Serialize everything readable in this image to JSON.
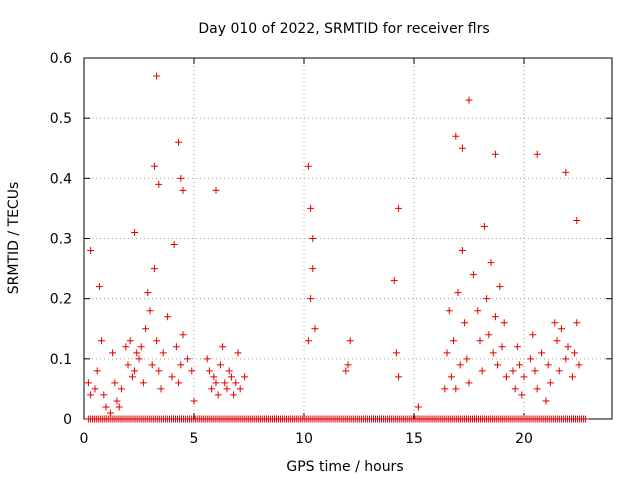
{
  "chart_data": {
    "type": "scatter",
    "title": "Day 010 of 2022, SRMTID for receiver flrs",
    "xlabel": "GPS time / hours",
    "ylabel": "SRMTID / TECUs",
    "xlim": [
      0,
      24
    ],
    "ylim": [
      0,
      0.6
    ],
    "x_ticks": [
      0,
      5,
      10,
      15,
      20
    ],
    "x_tick_labels": [
      "0",
      "5",
      "10",
      "15",
      "20"
    ],
    "y_ticks": [
      0,
      0.1,
      0.2,
      0.3,
      0.4,
      0.5,
      0.6
    ],
    "y_tick_labels": [
      "0",
      "0.1",
      "0.2",
      "0.3",
      "0.4",
      "0.5",
      "0.6"
    ],
    "grid": true,
    "marker": "+",
    "color": "#e00000",
    "series": [
      {
        "name": "SRMTID",
        "x": [
          0.2,
          0.3,
          0.5,
          0.6,
          0.7,
          0.8,
          0.9,
          1.0,
          1.2,
          1.3,
          1.4,
          1.5,
          1.6,
          1.7,
          1.9,
          2.0,
          2.1,
          2.2,
          2.3,
          2.4,
          2.5,
          2.6,
          2.7,
          2.8,
          2.9,
          3.0,
          3.1,
          3.2,
          3.3,
          3.4,
          3.5,
          3.6,
          3.8,
          4.0,
          4.2,
          4.3,
          4.4,
          4.5,
          4.7,
          4.9,
          5.0,
          5.6,
          5.7,
          5.8,
          5.9,
          6.0,
          6.1,
          6.2,
          6.3,
          6.4,
          6.5,
          6.6,
          6.7,
          6.8,
          6.9,
          7.0,
          7.1,
          7.3,
          10.2,
          10.3,
          10.4,
          10.5,
          11.9,
          12.0,
          12.1,
          14.1,
          14.2,
          14.3,
          15.2,
          16.4,
          16.5,
          16.6,
          16.7,
          16.8,
          16.9,
          17.0,
          17.1,
          17.2,
          17.3,
          17.4,
          17.5,
          17.7,
          17.9,
          18.0,
          18.1,
          18.2,
          18.3,
          18.4,
          18.5,
          18.6,
          18.7,
          18.8,
          18.9,
          19.0,
          19.1,
          19.2,
          19.5,
          19.6,
          19.7,
          19.8,
          19.9,
          20.0,
          20.3,
          20.4,
          20.5,
          20.6,
          20.8,
          21.0,
          21.1,
          21.2,
          21.4,
          21.5,
          21.6,
          21.7,
          21.9,
          22.0,
          22.2,
          22.3,
          22.4,
          22.5,
          3.3,
          4.3,
          4.4,
          4.5,
          10.2,
          10.4,
          17.5,
          16.9,
          17.2,
          18.7,
          20.6,
          21.9,
          22.4,
          3.2,
          3.4,
          6.0,
          14.3,
          10.3,
          2.3,
          4.1,
          0.3
        ],
        "y": [
          0.06,
          0.04,
          0.05,
          0.08,
          0.22,
          0.13,
          0.04,
          0.02,
          0.01,
          0.11,
          0.06,
          0.03,
          0.02,
          0.05,
          0.12,
          0.09,
          0.13,
          0.07,
          0.08,
          0.11,
          0.1,
          0.12,
          0.06,
          0.15,
          0.21,
          0.18,
          0.09,
          0.25,
          0.13,
          0.08,
          0.05,
          0.11,
          0.17,
          0.07,
          0.12,
          0.06,
          0.09,
          0.14,
          0.1,
          0.08,
          0.03,
          0.1,
          0.08,
          0.05,
          0.07,
          0.06,
          0.04,
          0.09,
          0.12,
          0.06,
          0.05,
          0.08,
          0.07,
          0.04,
          0.06,
          0.11,
          0.05,
          0.07,
          0.13,
          0.2,
          0.25,
          0.15,
          0.08,
          0.09,
          0.13,
          0.23,
          0.11,
          0.07,
          0.02,
          0.05,
          0.11,
          0.18,
          0.07,
          0.13,
          0.05,
          0.21,
          0.09,
          0.28,
          0.16,
          0.1,
          0.06,
          0.24,
          0.18,
          0.13,
          0.08,
          0.32,
          0.2,
          0.14,
          0.26,
          0.11,
          0.17,
          0.09,
          0.22,
          0.12,
          0.16,
          0.07,
          0.08,
          0.05,
          0.12,
          0.09,
          0.04,
          0.07,
          0.1,
          0.14,
          0.08,
          0.05,
          0.11,
          0.03,
          0.09,
          0.06,
          0.16,
          0.13,
          0.08,
          0.15,
          0.1,
          0.12,
          0.07,
          0.11,
          0.16,
          0.09,
          0.57,
          0.46,
          0.4,
          0.38,
          0.42,
          0.3,
          0.53,
          0.47,
          0.45,
          0.44,
          0.44,
          0.41,
          0.33,
          0.42,
          0.39,
          0.38,
          0.35,
          0.35,
          0.31,
          0.29,
          0.28
        ]
      }
    ]
  }
}
